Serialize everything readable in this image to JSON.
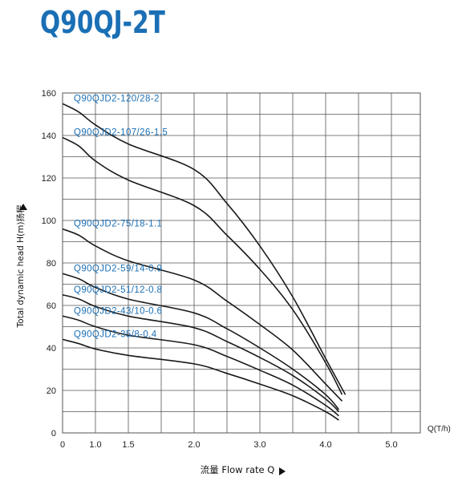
{
  "title": "Q90QJ-2T",
  "colors": {
    "title": "#1a6fb5",
    "curve_label": "#1a6fb5",
    "curve": "#1a1a1a",
    "grid": "#555555"
  },
  "chart_data": {
    "type": "line",
    "ylabel": "Total dynamic head H(m)扬程",
    "xlabel": "流量 Flow rate Q",
    "x_unit_label": "Q(T/h)",
    "x_ticks": [
      "0",
      "1.0",
      "1.5",
      "2.0",
      "3.0",
      "4.0",
      "5.0"
    ],
    "y_ticks": [
      "0",
      "20",
      "40",
      "60",
      "80",
      "100",
      "120",
      "140",
      "160"
    ],
    "ylim": [
      0,
      160
    ],
    "grid": true,
    "series": [
      {
        "name": "Q90QJD2-120/28-2",
        "x": [
          0,
          0.5,
          1.0,
          1.5,
          2.0,
          2.5,
          3.0,
          3.5,
          4.0,
          4.3
        ],
        "y": [
          155,
          151,
          145,
          136,
          124,
          108,
          88,
          64,
          35,
          18
        ]
      },
      {
        "name": "Q90QJD2-107/26-1.5",
        "x": [
          0,
          0.5,
          1.0,
          1.5,
          2.0,
          2.5,
          3.0,
          3.5,
          4.0,
          4.25
        ],
        "y": [
          139,
          135,
          128,
          119,
          107,
          93,
          77,
          58,
          33,
          18
        ]
      },
      {
        "name": "Q90QJD2-75/18-1.1",
        "x": [
          0,
          0.5,
          1.0,
          1.5,
          2.0,
          2.5,
          3.0,
          3.5,
          4.0,
          4.25
        ],
        "y": [
          96,
          93,
          88,
          81,
          72,
          62,
          51,
          39,
          23,
          15
        ]
      },
      {
        "name": "Q90QJD2-59/14-0.9",
        "x": [
          0,
          0.5,
          1.0,
          1.5,
          2.0,
          2.5,
          3.0,
          3.5,
          4.0,
          4.2
        ],
        "y": [
          75,
          72.5,
          68.5,
          63,
          56.5,
          49,
          40,
          30,
          18,
          11
        ]
      },
      {
        "name": "Q90QJD2-51/12-0.8",
        "x": [
          0,
          0.5,
          1.0,
          1.5,
          2.0,
          2.5,
          3.0,
          3.5,
          4.0,
          4.2
        ],
        "y": [
          65,
          63,
          59.5,
          55,
          49.5,
          43,
          35.5,
          27,
          16,
          10
        ]
      },
      {
        "name": "Q90QJD2-43/10-0.6",
        "x": [
          0,
          0.5,
          1.0,
          1.5,
          2.0,
          2.5,
          3.0,
          3.5,
          4.0,
          4.2
        ],
        "y": [
          55,
          53,
          50,
          46,
          41.5,
          36,
          29.5,
          22.5,
          13,
          8
        ]
      },
      {
        "name": "Q90QJD2-35/8-0.4",
        "x": [
          0,
          0.5,
          1.0,
          1.5,
          2.0,
          2.5,
          3.0,
          3.5,
          4.0,
          4.2
        ],
        "y": [
          44,
          42,
          39.5,
          36.5,
          32.5,
          28,
          23,
          17.5,
          10,
          6
        ]
      }
    ]
  }
}
